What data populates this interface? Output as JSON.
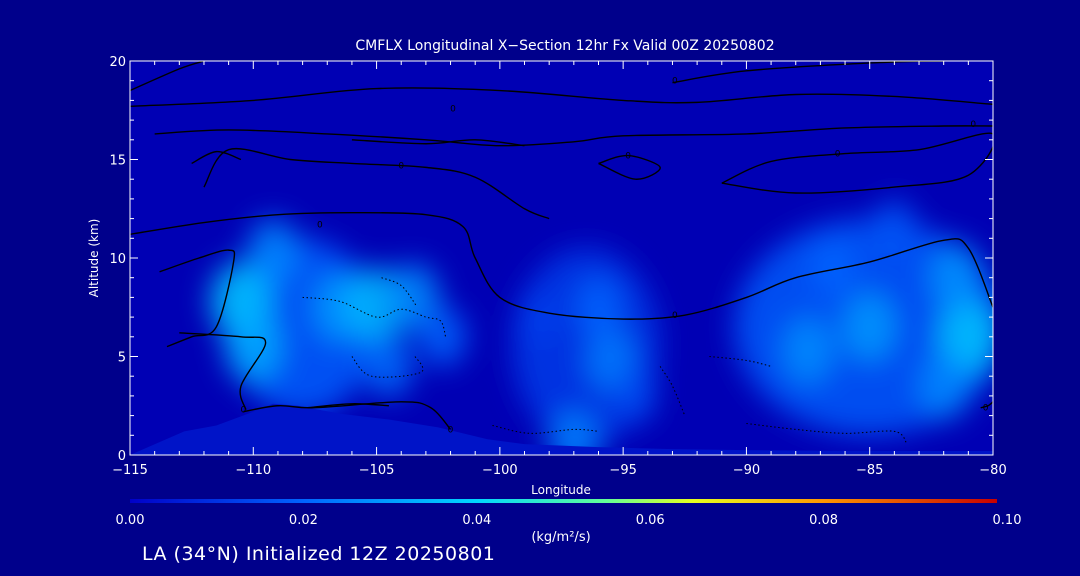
{
  "colors": {
    "background": "#00008b",
    "text": "#ffffff",
    "contour": "#000000",
    "terrain": "#0014c8"
  },
  "footer": {
    "caption": "LA (34°N) Initialized 12Z 20250801"
  },
  "chart_data": {
    "type": "heatmap",
    "title": "CMFLX Longitudinal X−Section 12hr  Fx Valid 00Z 20250802",
    "xlabel": "Longitude",
    "ylabel": "Altitude (km)",
    "xlim": [
      -115,
      -80
    ],
    "ylim": [
      0,
      20
    ],
    "x_ticks": [
      -115,
      -110,
      -105,
      -100,
      -95,
      -90,
      -85,
      -80
    ],
    "x_tick_labels": [
      "−115",
      "−110",
      "−105",
      "−100",
      "−95",
      "−90",
      "−85",
      "−80"
    ],
    "y_ticks": [
      0,
      5,
      10,
      15,
      20
    ],
    "y_tick_labels": [
      "0",
      "5",
      "10",
      "15",
      "20"
    ],
    "colorbar": {
      "min": 0.0,
      "max": 0.1,
      "ticks": [
        "0.00",
        "0.02",
        "0.04",
        "0.06",
        "0.08",
        "0.10"
      ],
      "units": "(kg/m²/s)"
    },
    "flux_cells": [
      {
        "lon": -110.5,
        "alt": 7.8,
        "value": 0.037
      },
      {
        "lon": -110.0,
        "alt": 5.5,
        "value": 0.032
      },
      {
        "lon": -109.2,
        "alt": 10.3,
        "value": 0.026
      },
      {
        "lon": -106.5,
        "alt": 7.5,
        "value": 0.029
      },
      {
        "lon": -105.0,
        "alt": 7.6,
        "value": 0.035
      },
      {
        "lon": -103.5,
        "alt": 8.0,
        "value": 0.027
      },
      {
        "lon": -104.5,
        "alt": 4.5,
        "value": 0.022
      },
      {
        "lon": -102.3,
        "alt": 6.0,
        "value": 0.02
      },
      {
        "lon": -98.5,
        "alt": 7.0,
        "value": 0.013
      },
      {
        "lon": -95.5,
        "alt": 4.8,
        "value": 0.024
      },
      {
        "lon": -96.0,
        "alt": 7.5,
        "value": 0.02
      },
      {
        "lon": -94.5,
        "alt": 3.0,
        "value": 0.015
      },
      {
        "lon": -87.5,
        "alt": 5.3,
        "value": 0.027
      },
      {
        "lon": -85.0,
        "alt": 6.5,
        "value": 0.029
      },
      {
        "lon": -86.5,
        "alt": 9.5,
        "value": 0.02
      },
      {
        "lon": -84.0,
        "alt": 11.5,
        "value": 0.017
      },
      {
        "lon": -81.0,
        "alt": 6.0,
        "value": 0.037
      },
      {
        "lon": -81.5,
        "alt": 9.0,
        "value": 0.028
      },
      {
        "lon": -82.0,
        "alt": 3.5,
        "value": 0.026
      },
      {
        "lon": -97.0,
        "alt": 0.6,
        "value": 0.025
      }
    ],
    "contour_labels": [
      "0"
    ],
    "contour_lines": [
      {
        "style": "solid",
        "points": [
          [
            -115,
            17.7
          ],
          [
            -110,
            18.0
          ],
          [
            -105,
            18.6
          ],
          [
            -100,
            18.5
          ],
          [
            -95,
            18.0
          ],
          [
            -92,
            17.9
          ],
          [
            -88,
            18.3
          ],
          [
            -84,
            18.2
          ],
          [
            -80,
            17.8
          ]
        ]
      },
      {
        "style": "solid",
        "points": [
          [
            -115,
            18.5
          ],
          [
            -113,
            19.6
          ],
          [
            -112,
            20
          ]
        ]
      },
      {
        "style": "solid",
        "points": [
          [
            -93,
            18.9
          ],
          [
            -90,
            19.5
          ],
          [
            -85,
            19.9
          ],
          [
            -82,
            20
          ]
        ]
      },
      {
        "style": "solid",
        "points": [
          [
            -114,
            16.3
          ],
          [
            -111,
            16.5
          ],
          [
            -107,
            16.3
          ],
          [
            -103,
            16.0
          ],
          [
            -100,
            15.7
          ],
          [
            -97,
            15.9
          ],
          [
            -95,
            16.2
          ],
          [
            -90,
            16.3
          ],
          [
            -86,
            16.6
          ],
          [
            -82,
            16.7
          ],
          [
            -80,
            16.7
          ]
        ]
      },
      {
        "style": "solid",
        "points": [
          [
            -106,
            16.0
          ],
          [
            -103,
            15.8
          ],
          [
            -101,
            16.0
          ],
          [
            -99,
            15.7
          ]
        ]
      },
      {
        "style": "solid",
        "points": [
          [
            -112,
            13.6
          ],
          [
            -111,
            15.5
          ],
          [
            -108.5,
            15.0
          ],
          [
            -106,
            14.8
          ],
          [
            -103,
            14.6
          ],
          [
            -101,
            14.1
          ],
          [
            -99,
            12.5
          ],
          [
            -98,
            12.0
          ]
        ]
      },
      {
        "style": "solid",
        "points": [
          [
            -115,
            11.2
          ],
          [
            -112,
            11.8
          ],
          [
            -109,
            12.2
          ],
          [
            -106,
            12.3
          ],
          [
            -103,
            12.2
          ],
          [
            -101.5,
            11.6
          ],
          [
            -101,
            10.0
          ],
          [
            -100,
            8.0
          ],
          [
            -98,
            7.2
          ],
          [
            -95,
            6.9
          ],
          [
            -92.5,
            7.1
          ],
          [
            -90,
            8.0
          ],
          [
            -88,
            9.0
          ],
          [
            -85,
            9.8
          ],
          [
            -82,
            10.9
          ],
          [
            -81,
            10.5
          ],
          [
            -80,
            7.5
          ]
        ]
      },
      {
        "style": "solid",
        "points": [
          [
            -96,
            14.8
          ],
          [
            -94.8,
            15.2
          ],
          [
            -93.5,
            14.6
          ],
          [
            -94.5,
            14.0
          ],
          [
            -96,
            14.8
          ]
        ]
      },
      {
        "style": "solid",
        "points": [
          [
            -91,
            13.8
          ],
          [
            -89,
            14.9
          ],
          [
            -86,
            15.3
          ],
          [
            -83,
            15.5
          ],
          [
            -80,
            16.3
          ],
          [
            -81,
            14.2
          ],
          [
            -84,
            13.6
          ],
          [
            -88,
            13.3
          ],
          [
            -91,
            13.8
          ]
        ]
      },
      {
        "style": "solid",
        "points": [
          [
            -112.5,
            14.8
          ],
          [
            -111.5,
            15.4
          ],
          [
            -110.5,
            15.0
          ]
        ]
      },
      {
        "style": "solid",
        "points": [
          [
            -113.8,
            9.3
          ],
          [
            -112.2,
            10.0
          ],
          [
            -111.0,
            10.4
          ],
          [
            -110.8,
            9.8
          ],
          [
            -111.5,
            6.5
          ],
          [
            -112.5,
            6.0
          ],
          [
            -113.5,
            5.5
          ]
        ]
      },
      {
        "style": "solid",
        "points": [
          [
            -113.0,
            6.2
          ],
          [
            -110.5,
            6.0
          ],
          [
            -109.5,
            5.7
          ],
          [
            -110.5,
            3.5
          ],
          [
            -110.3,
            2.3
          ]
        ]
      },
      {
        "style": "solid",
        "points": [
          [
            -110.4,
            2.2
          ],
          [
            -109.0,
            2.5
          ],
          [
            -107.5,
            2.4
          ],
          [
            -104.0,
            2.7
          ],
          [
            -102.8,
            2.4
          ],
          [
            -102.0,
            1.3
          ]
        ]
      },
      {
        "style": "solid",
        "points": [
          [
            -107.8,
            2.4
          ],
          [
            -106.0,
            2.6
          ],
          [
            -104.5,
            2.5
          ]
        ]
      },
      {
        "style": "solid",
        "points": [
          [
            -80.5,
            2.4
          ],
          [
            -80.2,
            2.5
          ],
          [
            -80,
            2.7
          ]
        ]
      },
      {
        "style": "dotted",
        "points": [
          [
            -108,
            8.0
          ],
          [
            -106.5,
            7.8
          ],
          [
            -105.0,
            7.0
          ],
          [
            -104,
            7.4
          ],
          [
            -103,
            7.0
          ],
          [
            -102.4,
            6.8
          ],
          [
            -102.2,
            6.0
          ]
        ]
      },
      {
        "style": "dotted",
        "points": [
          [
            -104.8,
            9.0
          ],
          [
            -104.0,
            8.6
          ],
          [
            -103.4,
            7.6
          ]
        ]
      },
      {
        "style": "dotted",
        "points": [
          [
            -106.0,
            5.0
          ],
          [
            -105.2,
            4.0
          ],
          [
            -103.2,
            4.2
          ],
          [
            -103.5,
            5.1
          ]
        ]
      },
      {
        "style": "dotted",
        "points": [
          [
            -91.5,
            5.0
          ],
          [
            -90.0,
            4.8
          ],
          [
            -89.0,
            4.5
          ]
        ]
      },
      {
        "style": "dotted",
        "points": [
          [
            -100.3,
            1.5
          ],
          [
            -98.8,
            1.1
          ],
          [
            -97.0,
            1.3
          ],
          [
            -96.0,
            1.2
          ]
        ]
      },
      {
        "style": "dotted",
        "points": [
          [
            -93.5,
            4.5
          ],
          [
            -93.0,
            3.5
          ],
          [
            -92.5,
            2.0
          ]
        ]
      },
      {
        "style": "dotted",
        "points": [
          [
            -90,
            1.6
          ],
          [
            -88.0,
            1.3
          ],
          [
            -86.0,
            1.1
          ],
          [
            -84.0,
            1.2
          ],
          [
            -83.5,
            0.6
          ]
        ]
      }
    ],
    "contour_label_positions": [
      [
        -92.9,
        19.0
      ],
      [
        -101.9,
        17.6
      ],
      [
        -94.8,
        15.2
      ],
      [
        -104.0,
        14.7
      ],
      [
        -107.3,
        11.7
      ],
      [
        -92.9,
        7.1
      ],
      [
        -86.3,
        15.3
      ],
      [
        -80.8,
        16.8
      ],
      [
        -110.4,
        2.3
      ],
      [
        -102.0,
        1.3
      ],
      [
        -80.3,
        2.4
      ]
    ],
    "terrain_profile": [
      [
        -115,
        0
      ],
      [
        -112.8,
        1.2
      ],
      [
        -111.5,
        1.5
      ],
      [
        -110.2,
        2.1
      ],
      [
        -109.2,
        2.6
      ],
      [
        -108.2,
        2.5
      ],
      [
        -106.5,
        2.1
      ],
      [
        -104.5,
        1.8
      ],
      [
        -102.5,
        1.4
      ],
      [
        -100.5,
        0.8
      ],
      [
        -99,
        0.55
      ],
      [
        -96,
        0.4
      ],
      [
        -93,
        0.3
      ],
      [
        -90,
        0.25
      ],
      [
        -85,
        0.2
      ],
      [
        -80,
        0.2
      ],
      [
        -80,
        0
      ]
    ]
  }
}
